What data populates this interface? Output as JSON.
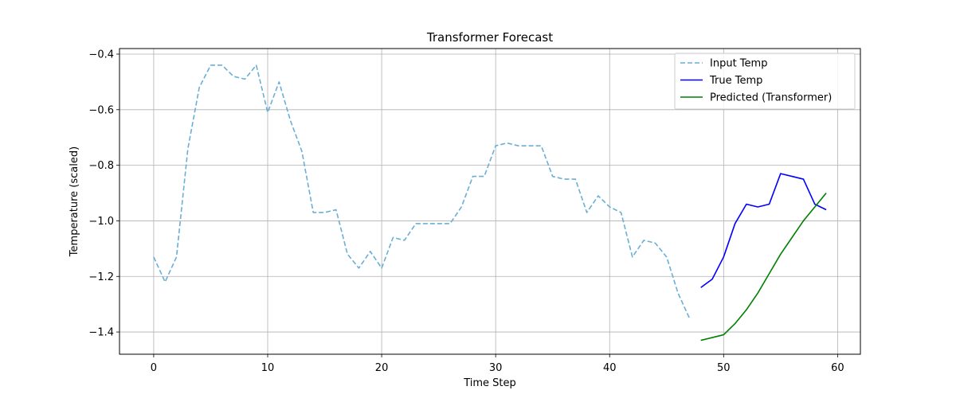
{
  "chart_data": {
    "type": "line",
    "title": "Transformer Forecast",
    "xlabel": "Time Step",
    "ylabel": "Temperature (scaled)",
    "xlim": [
      -3,
      62
    ],
    "ylim": [
      -1.48,
      -0.38
    ],
    "xticks": [
      0,
      10,
      20,
      30,
      40,
      50,
      60
    ],
    "yticks": [
      -1.4,
      -1.2,
      -1.0,
      -0.8,
      -0.6,
      -0.4
    ],
    "xtick_labels": [
      "0",
      "10",
      "20",
      "30",
      "40",
      "50",
      "60"
    ],
    "ytick_labels": [
      "−1.4",
      "−1.2",
      "−1.0",
      "−0.8",
      "−0.6",
      "−0.4"
    ],
    "grid": true,
    "legend_position": "top-right",
    "series": [
      {
        "name": "Input Temp",
        "color": "#6baed6",
        "style": "dashed",
        "x": [
          0,
          1,
          2,
          3,
          4,
          5,
          6,
          7,
          8,
          9,
          10,
          11,
          12,
          13,
          14,
          15,
          16,
          17,
          18,
          19,
          20,
          21,
          22,
          23,
          24,
          25,
          26,
          27,
          28,
          29,
          30,
          31,
          32,
          33,
          34,
          35,
          36,
          37,
          38,
          39,
          40,
          41,
          42,
          43,
          44,
          45,
          46,
          47
        ],
        "y": [
          -1.13,
          -1.22,
          -1.13,
          -0.74,
          -0.52,
          -0.44,
          -0.44,
          -0.48,
          -0.49,
          -0.44,
          -0.61,
          -0.5,
          -0.64,
          -0.75,
          -0.97,
          -0.97,
          -0.96,
          -1.12,
          -1.17,
          -1.11,
          -1.17,
          -1.06,
          -1.07,
          -1.01,
          -1.01,
          -1.01,
          -1.01,
          -0.95,
          -0.84,
          -0.84,
          -0.73,
          -0.72,
          -0.73,
          -0.73,
          -0.73,
          -0.84,
          -0.85,
          -0.85,
          -0.97,
          -0.91,
          -0.95,
          -0.97,
          -1.13,
          -1.07,
          -1.08,
          -1.13,
          -1.26,
          -1.35
        ]
      },
      {
        "name": "True Temp",
        "color": "#0000ff",
        "style": "solid",
        "x": [
          48,
          49,
          50,
          51,
          52,
          53,
          54,
          55,
          56,
          57,
          58,
          59
        ],
        "y": [
          -1.24,
          -1.21,
          -1.13,
          -1.01,
          -0.94,
          -0.95,
          -0.94,
          -0.83,
          -0.84,
          -0.85,
          -0.94,
          -0.96
        ]
      },
      {
        "name": "Predicted (Transformer)",
        "color": "#008000",
        "style": "solid",
        "x": [
          48,
          49,
          50,
          51,
          52,
          53,
          54,
          55,
          56,
          57,
          58,
          59
        ],
        "y": [
          -1.43,
          -1.42,
          -1.41,
          -1.37,
          -1.32,
          -1.26,
          -1.19,
          -1.12,
          -1.06,
          -1.0,
          -0.95,
          -0.9
        ]
      }
    ]
  }
}
